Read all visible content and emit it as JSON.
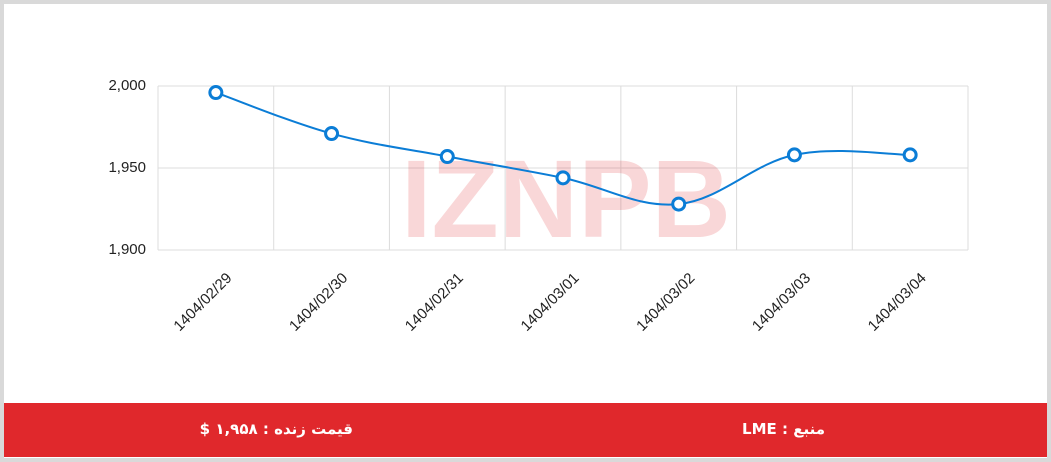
{
  "chart_data": {
    "type": "line",
    "categories": [
      "1404/02/29",
      "1404/02/30",
      "1404/02/31",
      "1404/03/01",
      "1404/03/02",
      "1404/03/03",
      "1404/03/04"
    ],
    "values": [
      1996,
      1971,
      1957,
      1944,
      1928,
      1958,
      1958
    ],
    "color": "#0b7dd6",
    "ylim": [
      1900,
      2000
    ],
    "yticks": [
      {
        "value": 1900,
        "label": "1,900"
      },
      {
        "value": 1950,
        "label": "1,950"
      },
      {
        "value": 2000,
        "label": "2,000"
      }
    ],
    "grid": true
  },
  "watermark": "IZNPB",
  "footer": {
    "source": "منبع : LME",
    "live_price": "قیمت زنده : ۱,۹۵۸ $"
  }
}
